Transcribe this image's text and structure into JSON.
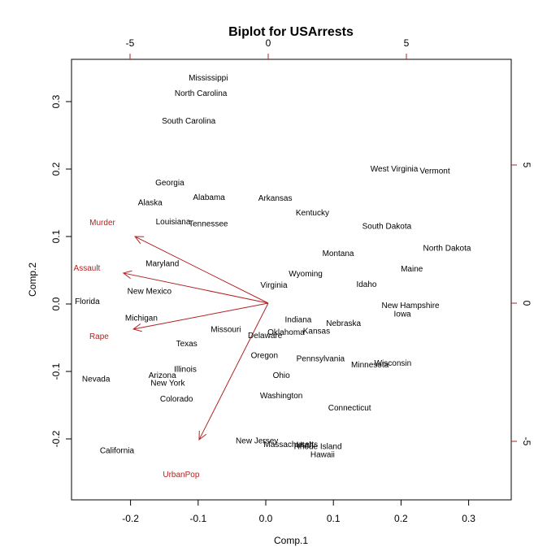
{
  "chart_data": {
    "type": "scatter",
    "subtype": "biplot",
    "title": "Biplot for USArrests",
    "xlabel": "Comp.1",
    "ylabel": "Comp.2",
    "xlim": [
      -0.29,
      0.36
    ],
    "ylim": [
      -0.29,
      0.36
    ],
    "x_ticks": [
      -0.2,
      -0.1,
      0.0,
      0.1,
      0.2,
      0.3
    ],
    "x_tick_labels": [
      "-0.2",
      "-0.1",
      "0.0",
      "0.1",
      "0.2",
      "0.3"
    ],
    "y_ticks": [
      -0.2,
      -0.1,
      0.0,
      0.1,
      0.2,
      0.3
    ],
    "y_tick_labels": [
      "-0.2",
      "-0.1",
      "0.0",
      "0.1",
      "0.2",
      "0.3"
    ],
    "top_axis": {
      "ticks": [
        -5,
        0,
        5
      ],
      "tick_labels": [
        "-5",
        "0",
        "5"
      ],
      "lim": [
        -7.2,
        8.7
      ]
    },
    "right_axis": {
      "ticks": [
        5,
        0,
        -5
      ],
      "tick_labels": [
        "5",
        "0",
        "-5"
      ],
      "lim": [
        -7.2,
        8.7
      ]
    },
    "grid": false,
    "legend": null,
    "loading_color": "#b22222",
    "observations": [
      {
        "label": "Mississippi",
        "x": -0.085,
        "y": 0.336
      },
      {
        "label": "North Carolina",
        "x": -0.096,
        "y": 0.313
      },
      {
        "label": "South Carolina",
        "x": -0.114,
        "y": 0.272
      },
      {
        "label": "Georgia",
        "x": -0.142,
        "y": 0.181
      },
      {
        "label": "Alaska",
        "x": -0.171,
        "y": 0.151
      },
      {
        "label": "Alabama",
        "x": -0.084,
        "y": 0.159
      },
      {
        "label": "Arkansas",
        "x": 0.014,
        "y": 0.158
      },
      {
        "label": "Kentucky",
        "x": 0.069,
        "y": 0.136
      },
      {
        "label": "Louisiana",
        "x": -0.137,
        "y": 0.123
      },
      {
        "label": "Tennessee",
        "x": -0.085,
        "y": 0.12
      },
      {
        "label": "West Virginia",
        "x": 0.19,
        "y": 0.201
      },
      {
        "label": "Vermont",
        "x": 0.25,
        "y": 0.198
      },
      {
        "label": "South Dakota",
        "x": 0.179,
        "y": 0.116
      },
      {
        "label": "North Dakota",
        "x": 0.268,
        "y": 0.084
      },
      {
        "label": "Montana",
        "x": 0.107,
        "y": 0.076
      },
      {
        "label": "Maine",
        "x": 0.216,
        "y": 0.053
      },
      {
        "label": "Wyoming",
        "x": 0.059,
        "y": 0.046
      },
      {
        "label": "Virginia",
        "x": 0.012,
        "y": 0.029
      },
      {
        "label": "Idaho",
        "x": 0.149,
        "y": 0.03
      },
      {
        "label": "Maryland",
        "x": -0.153,
        "y": 0.061
      },
      {
        "label": "New Mexico",
        "x": -0.172,
        "y": 0.02
      },
      {
        "label": "Florida",
        "x": -0.264,
        "y": 0.005
      },
      {
        "label": "Michigan",
        "x": -0.184,
        "y": -0.02
      },
      {
        "label": "Texas",
        "x": -0.117,
        "y": -0.058
      },
      {
        "label": "Missouri",
        "x": -0.059,
        "y": -0.037
      },
      {
        "label": "Delaware",
        "x": -0.001,
        "y": -0.046
      },
      {
        "label": "Oklahoma",
        "x": 0.03,
        "y": -0.041
      },
      {
        "label": "Indiana",
        "x": 0.048,
        "y": -0.022
      },
      {
        "label": "Kansas",
        "x": 0.075,
        "y": -0.039
      },
      {
        "label": "Nebraska",
        "x": 0.115,
        "y": -0.028
      },
      {
        "label": "New Hampshire",
        "x": 0.214,
        "y": -0.001
      },
      {
        "label": "Iowa",
        "x": 0.202,
        "y": -0.014
      },
      {
        "label": "Oregon",
        "x": -0.002,
        "y": -0.075
      },
      {
        "label": "Pennsylvania",
        "x": 0.081,
        "y": -0.08
      },
      {
        "label": "Minnesota",
        "x": 0.154,
        "y": -0.089
      },
      {
        "label": "Wisconsin",
        "x": 0.188,
        "y": -0.087
      },
      {
        "label": "Ohio",
        "x": 0.023,
        "y": -0.105
      },
      {
        "label": "Washington",
        "x": 0.023,
        "y": -0.135
      },
      {
        "label": "Connecticut",
        "x": 0.124,
        "y": -0.153
      },
      {
        "label": "Illinois",
        "x": -0.119,
        "y": -0.096
      },
      {
        "label": "Arizona",
        "x": -0.153,
        "y": -0.105
      },
      {
        "label": "New York",
        "x": -0.145,
        "y": -0.116
      },
      {
        "label": "Colorado",
        "x": -0.132,
        "y": -0.14
      },
      {
        "label": "Nevada",
        "x": -0.251,
        "y": -0.11
      },
      {
        "label": "California",
        "x": -0.22,
        "y": -0.216
      },
      {
        "label": "New Jersey",
        "x": -0.013,
        "y": -0.202
      },
      {
        "label": "Massachusetts",
        "x": 0.037,
        "y": -0.207
      },
      {
        "label": "Utah",
        "x": 0.058,
        "y": -0.208
      },
      {
        "label": "Rhode Island",
        "x": 0.077,
        "y": -0.21
      },
      {
        "label": "Hawaii",
        "x": 0.084,
        "y": -0.222
      }
    ],
    "loadings": [
      {
        "label": "Murder",
        "x": -4.82,
        "y": 2.41,
        "label_x": -6.0,
        "label_y": 2.94
      },
      {
        "label": "Assault",
        "x": -5.24,
        "y": 1.09,
        "label_x": -6.56,
        "label_y": 1.29
      },
      {
        "label": "Rape",
        "x": -4.88,
        "y": -0.94,
        "label_x": -6.12,
        "label_y": -1.18
      },
      {
        "label": "UrbanPop",
        "x": -2.5,
        "y": -4.94,
        "label_x": -3.15,
        "label_y": -6.18
      }
    ]
  }
}
